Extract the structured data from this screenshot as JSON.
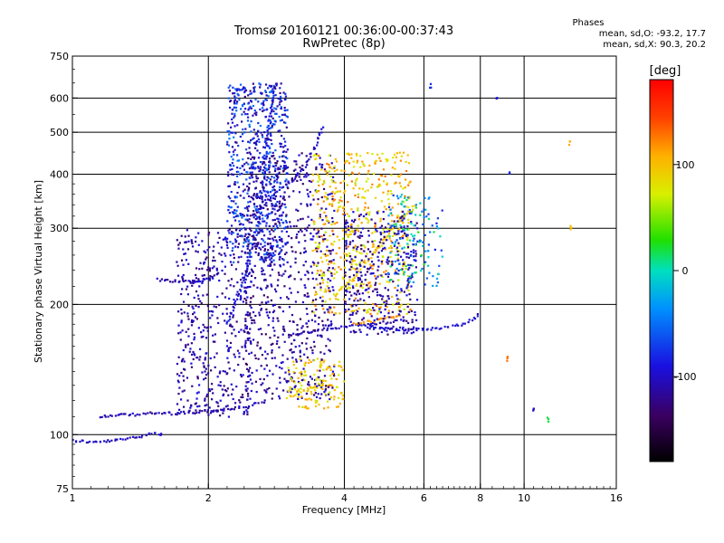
{
  "title": "Tromsø 20160121 00:36:00-00:37:43",
  "subtitle": "RwPretec (8p)",
  "stats": {
    "heading": "Phases",
    "line1": "mean, sd,O: -93.2, 17.7",
    "line2": "mean, sd,X:  90.3, 20.2"
  },
  "colorbar": {
    "label": "[deg]",
    "ticks": [
      "100",
      "0",
      "-100"
    ],
    "tick_values": [
      100,
      0,
      -100
    ],
    "range": [
      -180,
      180
    ]
  },
  "chart_data": {
    "type": "scatter",
    "xlabel": "Frequency [MHz]",
    "ylabel": "Stationary phase Virtual Height [km]",
    "xscale": "log",
    "yscale": "log",
    "xlim": [
      1,
      16
    ],
    "ylim": [
      75,
      750
    ],
    "xticks": [
      1,
      2,
      4,
      6,
      8,
      10,
      16
    ],
    "xtick_labels": [
      "1",
      "2",
      "4",
      "6",
      "8",
      "10",
      "16"
    ],
    "yticks": [
      75,
      100,
      200,
      300,
      400,
      500,
      600,
      750
    ],
    "ytick_labels": [
      "75",
      "100",
      "200",
      "300",
      "400",
      "500",
      "600",
      "750"
    ],
    "grid_x": [
      2,
      4,
      6,
      8,
      10
    ],
    "grid_y": [
      100,
      200,
      300,
      400,
      500,
      600
    ],
    "color_scale": "rainbow phase (deg), black=-180 to red=+180",
    "traces": [
      {
        "x": [
          1.0,
          1.12,
          1.25,
          1.4,
          1.5,
          1.6
        ],
        "y": [
          97,
          96,
          97,
          99,
          101,
          100
        ],
        "phase": -100
      },
      {
        "x": [
          1.15,
          1.3,
          1.5,
          1.7,
          1.9,
          2.1,
          2.3,
          2.5,
          2.7
        ],
        "y": [
          110,
          111,
          112,
          112,
          113,
          114,
          115,
          117,
          120
        ],
        "phase": -110
      },
      {
        "x": [
          1.55,
          1.65,
          1.75,
          1.85,
          1.95,
          2.05,
          2.15
        ],
        "y": [
          228,
          227,
          226,
          225,
          228,
          232,
          240
        ],
        "phase": -105
      },
      {
        "x": [
          2.2,
          2.4,
          2.6,
          2.7,
          2.8
        ],
        "y": [
          180,
          230,
          320,
          480,
          640
        ],
        "phase": -85
      },
      {
        "x": [
          2.6,
          2.8,
          3.0,
          3.3,
          3.6
        ],
        "y": [
          330,
          360,
          380,
          420,
          520
        ],
        "phase": -100
      },
      {
        "x": [
          3.0,
          3.3,
          3.6,
          4.0,
          4.5,
          5.0,
          5.5
        ],
        "y": [
          170,
          172,
          175,
          178,
          180,
          182,
          185
        ],
        "phase": -105
      },
      {
        "x": [
          4.5,
          5.0,
          5.5,
          6.0,
          6.5,
          7.0,
          7.5,
          8.0
        ],
        "y": [
          178,
          176,
          175,
          175,
          176,
          178,
          182,
          190
        ],
        "phase": -95
      },
      {
        "x": [
          3.0,
          3.2,
          3.4,
          3.6,
          3.8
        ],
        "y": [
          122,
          125,
          128,
          130,
          129
        ],
        "phase": 95
      },
      {
        "x": [
          3.8,
          4.2,
          4.6,
          5.0,
          5.4,
          5.8
        ],
        "y": [
          210,
          230,
          260,
          290,
          320,
          340
        ],
        "phase": 95
      },
      {
        "x": [
          4.2,
          4.6,
          5.0,
          5.4
        ],
        "y": [
          180,
          183,
          186,
          188
        ],
        "phase": 115
      }
    ],
    "outliers": [
      {
        "x": 9.2,
        "y": 150,
        "phase": 130
      },
      {
        "x": 9.3,
        "y": 400,
        "phase": -80
      },
      {
        "x": 10.5,
        "y": 115,
        "phase": -100
      },
      {
        "x": 12.6,
        "y": 470,
        "phase": 110
      },
      {
        "x": 12.7,
        "y": 300,
        "phase": 100
      },
      {
        "x": 11.3,
        "y": 108,
        "phase": 20
      },
      {
        "x": 6.2,
        "y": 640,
        "phase": -80
      },
      {
        "x": 8.7,
        "y": 600,
        "phase": -90
      }
    ]
  }
}
